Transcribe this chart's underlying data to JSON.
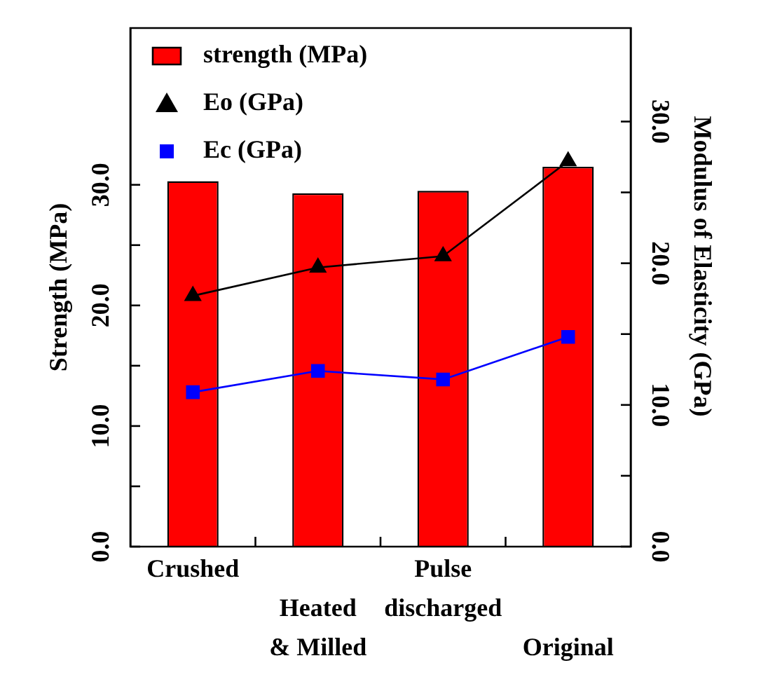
{
  "chart_data": {
    "type": "bar",
    "ylabel": "Strength (MPa)",
    "y2label": "Modulus of Elasticity (GPa)",
    "categories": [
      "Crushed",
      "Heated & Milled",
      "Pulse discharged",
      "Original"
    ],
    "series": [
      {
        "name": "strength (MPa)",
        "color": "#ff0000",
        "values": [
          30.3,
          29.3,
          29.5,
          31.5
        ]
      },
      {
        "name": "Eo (GPa)",
        "type": "line",
        "axis": "y2",
        "color": "#000000",
        "marker": "triangle",
        "values": [
          17.7,
          19.7,
          20.5,
          27.2
        ]
      },
      {
        "name": "Ec (GPa)",
        "type": "line",
        "axis": "y2",
        "color": "#0000ff",
        "marker": "square",
        "values": [
          10.9,
          12.4,
          11.8,
          14.8
        ]
      }
    ],
    "ylim": [
      0,
      43
    ],
    "yticks": [
      {
        "value": 0,
        "label": "0.0"
      },
      {
        "value": 5,
        "label": null
      },
      {
        "value": 10,
        "label": "10.0"
      },
      {
        "value": 15,
        "label": null
      },
      {
        "value": 20,
        "label": "20.0"
      },
      {
        "value": 25,
        "label": null
      },
      {
        "value": 30,
        "label": "30.0"
      }
    ],
    "y2lim": [
      0,
      36.6
    ],
    "y2ticks": [
      {
        "value": 0,
        "label": "0.0"
      },
      {
        "value": 5,
        "label": null
      },
      {
        "value": 10,
        "label": "10.0"
      },
      {
        "value": 15,
        "label": null
      },
      {
        "value": 20,
        "label": "20.0"
      },
      {
        "value": 25,
        "label": null
      },
      {
        "value": 30,
        "label": "30.0"
      }
    ],
    "grid": false,
    "legend": "top left"
  }
}
